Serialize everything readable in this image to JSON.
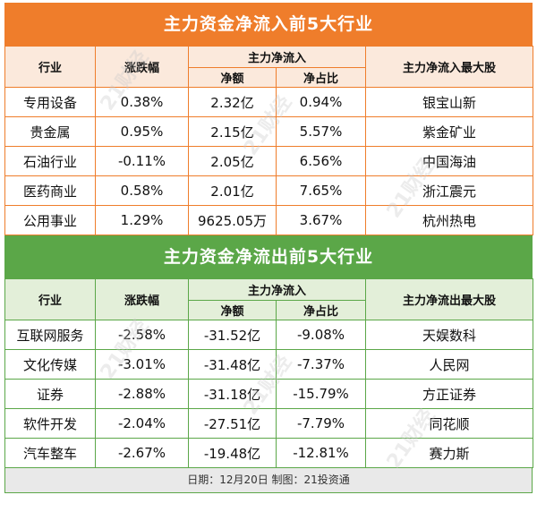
{
  "inflow": {
    "title": "主力资金净流入前5大行业",
    "headers": {
      "industry": "行业",
      "change": "涨跌幅",
      "group": "主力净流入",
      "net": "净额",
      "ratio": "净占比",
      "top_stock": "主力净流入最大股"
    },
    "rows": [
      {
        "industry": "专用设备",
        "change": "0.38%",
        "net": "2.32亿",
        "ratio": "0.94%",
        "top_stock": "银宝山新"
      },
      {
        "industry": "贵金属",
        "change": "0.95%",
        "net": "2.15亿",
        "ratio": "5.57%",
        "top_stock": "紫金矿业"
      },
      {
        "industry": "石油行业",
        "change": "-0.11%",
        "net": "2.05亿",
        "ratio": "6.56%",
        "top_stock": "中国海油"
      },
      {
        "industry": "医药商业",
        "change": "0.58%",
        "net": "2.01亿",
        "ratio": "7.65%",
        "top_stock": "浙江震元"
      },
      {
        "industry": "公用事业",
        "change": "1.29%",
        "net": "9625.05万",
        "ratio": "3.67%",
        "top_stock": "杭州热电"
      }
    ]
  },
  "outflow": {
    "title": "主力资金净流出前5大行业",
    "headers": {
      "industry": "行业",
      "change": "涨跌幅",
      "group": "主力净流入",
      "net": "净额",
      "ratio": "净占比",
      "top_stock": "主力净流出最大股"
    },
    "rows": [
      {
        "industry": "互联网服务",
        "change": "-2.58%",
        "net": "-31.52亿",
        "ratio": "-9.08%",
        "top_stock": "天娱数科"
      },
      {
        "industry": "文化传媒",
        "change": "-3.01%",
        "net": "-31.48亿",
        "ratio": "-7.37%",
        "top_stock": "人民网"
      },
      {
        "industry": "证券",
        "change": "-2.88%",
        "net": "-31.18亿",
        "ratio": "-15.79%",
        "top_stock": "方正证券"
      },
      {
        "industry": "软件开发",
        "change": "-2.04%",
        "net": "-27.51亿",
        "ratio": "-7.79%",
        "top_stock": "同花顺"
      },
      {
        "industry": "汽车整车",
        "change": "-2.67%",
        "net": "-19.48亿",
        "ratio": "-12.81%",
        "top_stock": "赛力斯"
      }
    ]
  },
  "footer": "日期：12月20日 制图：21投资通",
  "watermark": "21财经",
  "colors": {
    "inflow_accent": "#ef7d2b",
    "outflow_accent": "#5ba748",
    "inflow_header_bg": "#fbe9dc",
    "outflow_header_bg": "#e3efd9"
  }
}
